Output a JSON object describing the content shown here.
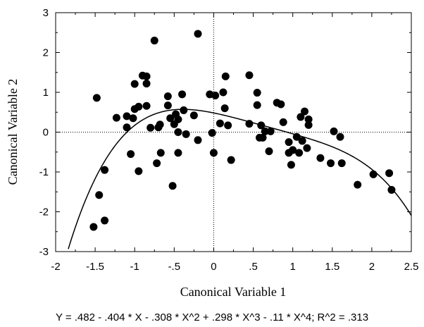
{
  "chart_data": {
    "type": "scatter",
    "title": "",
    "xlabel": "Canonical Variable 1",
    "ylabel": "Canonical Variable 2",
    "xlim": [
      -2,
      2.5
    ],
    "ylim": [
      -3,
      3
    ],
    "x_ticks": [
      "-2",
      "-1.5",
      "-1",
      "-.5",
      "0",
      ".5",
      "1",
      "1.5",
      "2",
      "2.5"
    ],
    "y_ticks": [
      "-3",
      "-2",
      "-1",
      "0",
      "1",
      "2",
      "3"
    ],
    "grid": false,
    "reference_lines": {
      "x": 0,
      "y": 0,
      "style": "dotted"
    },
    "annotation": "Y = .482 - .404 * X - .308 * X^2 + .298 * X^3 - .11 * X^4; R^2 = .313",
    "fit": {
      "type": "polynomial",
      "coefficients": [
        0.482,
        -0.404,
        -0.308,
        0.298,
        -0.11
      ]
    },
    "points": [
      {
        "x": -1.48,
        "y": 0.86
      },
      {
        "x": -1.52,
        "y": -2.38
      },
      {
        "x": -1.45,
        "y": -1.58
      },
      {
        "x": -1.38,
        "y": -0.95
      },
      {
        "x": -1.38,
        "y": -2.22
      },
      {
        "x": -1.23,
        "y": 0.36
      },
      {
        "x": -1.1,
        "y": 0.4
      },
      {
        "x": -1.1,
        "y": 0.12
      },
      {
        "x": -1.05,
        "y": -0.55
      },
      {
        "x": -1.02,
        "y": 0.35
      },
      {
        "x": -1.0,
        "y": 0.58
      },
      {
        "x": -1.0,
        "y": 1.21
      },
      {
        "x": -0.95,
        "y": -0.98
      },
      {
        "x": -0.95,
        "y": 0.64
      },
      {
        "x": -0.9,
        "y": 1.42
      },
      {
        "x": -0.85,
        "y": 1.4
      },
      {
        "x": -0.85,
        "y": 1.22
      },
      {
        "x": -0.85,
        "y": 0.66
      },
      {
        "x": -0.8,
        "y": 0.11
      },
      {
        "x": -0.75,
        "y": 2.3
      },
      {
        "x": -0.72,
        "y": -0.78
      },
      {
        "x": -0.7,
        "y": 0.12
      },
      {
        "x": -0.68,
        "y": 0.19
      },
      {
        "x": -0.67,
        "y": -0.52
      },
      {
        "x": -0.58,
        "y": 0.9
      },
      {
        "x": -0.58,
        "y": 0.67
      },
      {
        "x": -0.55,
        "y": 0.35
      },
      {
        "x": -0.52,
        "y": -1.35
      },
      {
        "x": -0.5,
        "y": 0.2
      },
      {
        "x": -0.48,
        "y": 0.45
      },
      {
        "x": -0.45,
        "y": -0.52
      },
      {
        "x": -0.45,
        "y": 0.32
      },
      {
        "x": -0.45,
        "y": 0.0
      },
      {
        "x": -0.4,
        "y": 0.95
      },
      {
        "x": -0.38,
        "y": 0.55
      },
      {
        "x": -0.35,
        "y": -0.05
      },
      {
        "x": -0.25,
        "y": 0.42
      },
      {
        "x": -0.2,
        "y": 2.47
      },
      {
        "x": -0.2,
        "y": -0.2
      },
      {
        "x": -0.05,
        "y": 0.95
      },
      {
        "x": -0.02,
        "y": -0.02
      },
      {
        "x": 0.0,
        "y": -0.52
      },
      {
        "x": 0.02,
        "y": 0.92
      },
      {
        "x": 0.08,
        "y": 0.22
      },
      {
        "x": 0.12,
        "y": 1.0
      },
      {
        "x": 0.14,
        "y": 0.6
      },
      {
        "x": 0.15,
        "y": 1.4
      },
      {
        "x": 0.18,
        "y": 0.17
      },
      {
        "x": 0.22,
        "y": -0.7
      },
      {
        "x": 0.45,
        "y": 1.43
      },
      {
        "x": 0.45,
        "y": 0.21
      },
      {
        "x": 0.55,
        "y": 0.99
      },
      {
        "x": 0.55,
        "y": 0.68
      },
      {
        "x": 0.58,
        "y": -0.14
      },
      {
        "x": 0.6,
        "y": 0.17
      },
      {
        "x": 0.62,
        "y": -0.14
      },
      {
        "x": 0.65,
        "y": 0.02
      },
      {
        "x": 0.7,
        "y": -0.48
      },
      {
        "x": 0.72,
        "y": 0.02
      },
      {
        "x": 0.8,
        "y": 0.74
      },
      {
        "x": 0.85,
        "y": 0.7
      },
      {
        "x": 0.88,
        "y": 0.25
      },
      {
        "x": 0.95,
        "y": -0.25
      },
      {
        "x": 0.95,
        "y": -0.52
      },
      {
        "x": 0.98,
        "y": -0.82
      },
      {
        "x": 1.0,
        "y": -0.45
      },
      {
        "x": 1.05,
        "y": -0.12
      },
      {
        "x": 1.08,
        "y": -0.52
      },
      {
        "x": 1.1,
        "y": 0.38
      },
      {
        "x": 1.12,
        "y": -0.22
      },
      {
        "x": 1.15,
        "y": 0.52
      },
      {
        "x": 1.18,
        "y": -0.4
      },
      {
        "x": 1.2,
        "y": 0.32
      },
      {
        "x": 1.2,
        "y": 0.18
      },
      {
        "x": 1.35,
        "y": -0.65
      },
      {
        "x": 1.48,
        "y": -0.78
      },
      {
        "x": 1.52,
        "y": 0.02
      },
      {
        "x": 1.6,
        "y": -0.12
      },
      {
        "x": 1.62,
        "y": -0.78
      },
      {
        "x": 1.82,
        "y": -1.32
      },
      {
        "x": 2.02,
        "y": -1.06
      },
      {
        "x": 2.22,
        "y": -1.03
      },
      {
        "x": 2.25,
        "y": -1.45
      }
    ]
  }
}
